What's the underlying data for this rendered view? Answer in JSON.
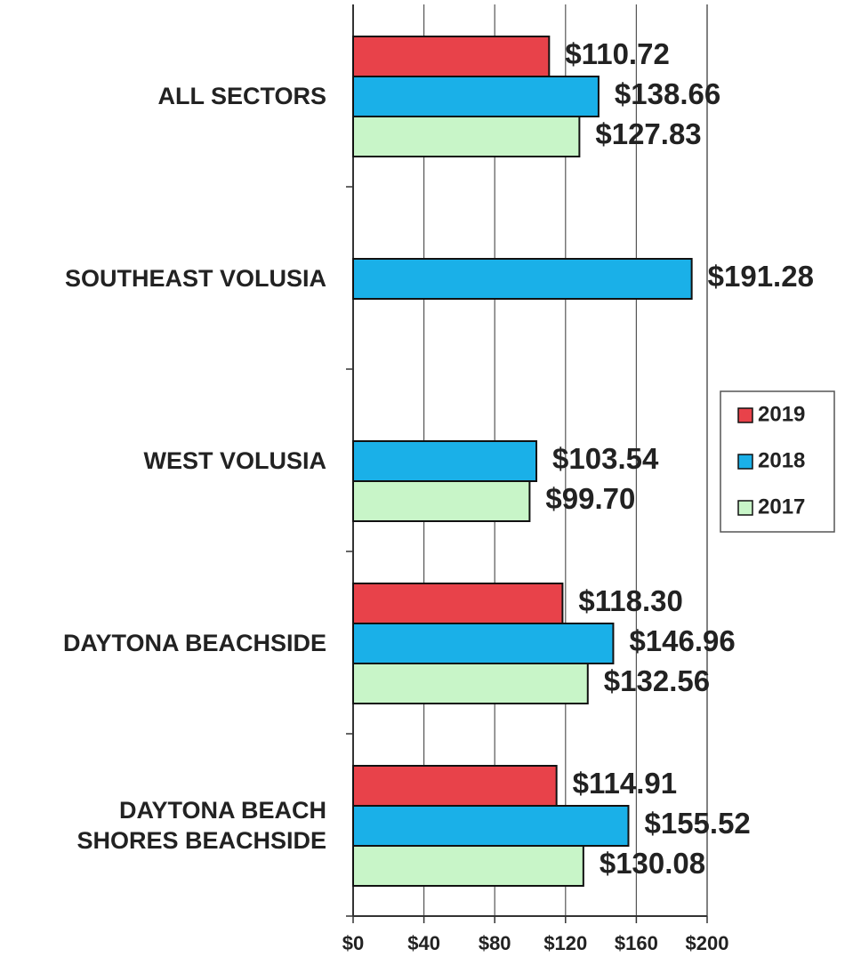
{
  "chart_data": {
    "type": "bar",
    "orientation": "horizontal",
    "categories": [
      "ALL SECTORS",
      "SOUTHEAST VOLUSIA",
      "WEST VOLUSIA",
      "DAYTONA BEACHSIDE",
      "DAYTONA BEACH SHORES BEACHSIDE"
    ],
    "series": [
      {
        "name": "2019",
        "color": "#e8424a",
        "values": [
          110.72,
          null,
          null,
          118.3,
          114.91
        ],
        "value_labels": [
          "$110.72",
          null,
          null,
          "$118.30",
          "$114.91"
        ]
      },
      {
        "name": "2018",
        "color": "#1ab0e8",
        "values": [
          138.66,
          191.28,
          103.54,
          146.96,
          155.52
        ],
        "value_labels": [
          "$138.66",
          "$191.28",
          "$103.54",
          "$146.96",
          "$155.52"
        ]
      },
      {
        "name": "2017",
        "color": "#c8f5c8",
        "values": [
          127.83,
          null,
          99.7,
          132.56,
          130.08
        ],
        "value_labels": [
          "$127.83",
          null,
          "$99.70",
          "$132.56",
          "$130.08"
        ]
      }
    ],
    "xlim": [
      0,
      200
    ],
    "xticks": [
      {
        "value": 0,
        "label": "$0"
      },
      {
        "value": 40,
        "label": "$40"
      },
      {
        "value": 80,
        "label": "$80"
      },
      {
        "value": 120,
        "label": "$120"
      },
      {
        "value": 160,
        "label": "$160"
      },
      {
        "value": 200,
        "label": "$200"
      }
    ],
    "grid": true,
    "legend": "right"
  }
}
